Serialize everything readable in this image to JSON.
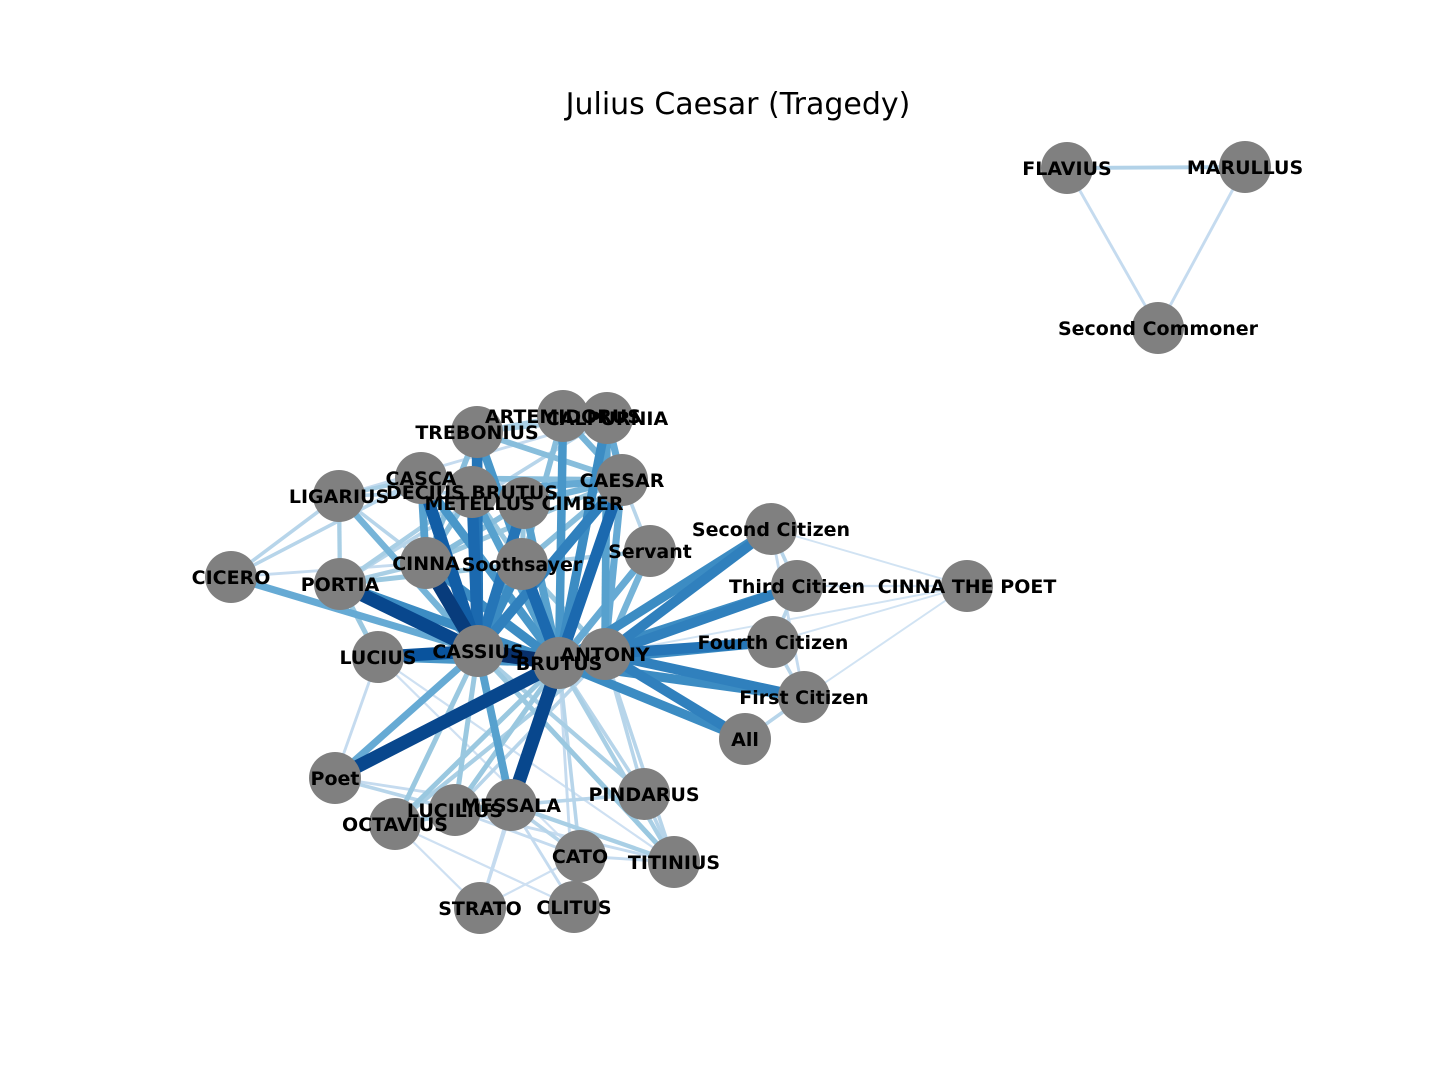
{
  "title": "Julius Caesar (Tragedy)",
  "node_color": "#808080",
  "edge_colormap": "Blues",
  "nodes": [
    {
      "id": "FLAVIUS",
      "label": "FLAVIUS"
    },
    {
      "id": "MARULLUS",
      "label": "MARULLUS"
    },
    {
      "id": "SECOND_COMMONER",
      "label": "Second Commoner"
    },
    {
      "id": "ARTEMIDORUS",
      "label": "ARTEMIDORUS"
    },
    {
      "id": "CALPURNIA",
      "label": "CALPURNIA"
    },
    {
      "id": "TREBONIUS",
      "label": "TREBONIUS"
    },
    {
      "id": "CASCA",
      "label": "CASCA"
    },
    {
      "id": "DECIUS_BRUTUS",
      "label": "DECIUS BRUTUS"
    },
    {
      "id": "METELLUS_CIMBER",
      "label": "METELLUS CIMBER"
    },
    {
      "id": "CAESAR",
      "label": "CAESAR"
    },
    {
      "id": "LIGARIUS",
      "label": "LIGARIUS"
    },
    {
      "id": "CINNA",
      "label": "CINNA"
    },
    {
      "id": "SOOTHSAYER",
      "label": "Soothsayer"
    },
    {
      "id": "SERVANT",
      "label": "Servant"
    },
    {
      "id": "SECOND_CITIZEN",
      "label": "Second Citizen"
    },
    {
      "id": "CICERO",
      "label": "CICERO"
    },
    {
      "id": "PORTIA",
      "label": "PORTIA"
    },
    {
      "id": "THIRD_CITIZEN",
      "label": "Third Citizen"
    },
    {
      "id": "CINNA_THE_POET",
      "label": "CINNA THE POET"
    },
    {
      "id": "LUCIUS",
      "label": "LUCIUS"
    },
    {
      "id": "CASSIUS",
      "label": "CASSIUS"
    },
    {
      "id": "BRUTUS",
      "label": "BRUTUS"
    },
    {
      "id": "ANTONY",
      "label": "ANTONY"
    },
    {
      "id": "FOURTH_CITIZEN",
      "label": "Fourth Citizen"
    },
    {
      "id": "FIRST_CITIZEN",
      "label": "First Citizen"
    },
    {
      "id": "ALL",
      "label": "All"
    },
    {
      "id": "POET",
      "label": "Poet"
    },
    {
      "id": "PINDARUS",
      "label": "PINDARUS"
    },
    {
      "id": "LUCILIUS",
      "label": "LUCILIUS"
    },
    {
      "id": "MESSALA",
      "label": "MESSALA"
    },
    {
      "id": "OCTAVIUS",
      "label": "OCTAVIUS"
    },
    {
      "id": "CATO",
      "label": "CATO"
    },
    {
      "id": "TITINIUS",
      "label": "TITINIUS"
    },
    {
      "id": "STRATO",
      "label": "STRATO"
    },
    {
      "id": "CLITUS",
      "label": "CLITUS"
    }
  ],
  "edges": [
    [
      "FLAVIUS",
      "MARULLUS",
      0.22
    ],
    [
      "FLAVIUS",
      "SECOND_COMMONER",
      0.15
    ],
    [
      "MARULLUS",
      "SECOND_COMMONER",
      0.15
    ],
    [
      "CASSIUS",
      "BRUTUS",
      1.0
    ],
    [
      "CASSIUS",
      "CINNA",
      0.95
    ],
    [
      "CASSIUS",
      "PORTIA",
      0.9
    ],
    [
      "CASSIUS",
      "LUCIUS",
      0.85
    ],
    [
      "CASSIUS",
      "CASCA",
      0.8
    ],
    [
      "CASSIUS",
      "DECIUS_BRUTUS",
      0.75
    ],
    [
      "CASSIUS",
      "METELLUS_CIMBER",
      0.7
    ],
    [
      "CASSIUS",
      "TREBONIUS",
      0.7
    ],
    [
      "CASSIUS",
      "CAESAR",
      0.65
    ],
    [
      "CASSIUS",
      "SOOTHSAYER",
      0.6
    ],
    [
      "CASSIUS",
      "LIGARIUS",
      0.4
    ],
    [
      "CASSIUS",
      "CICERO",
      0.45
    ],
    [
      "CASSIUS",
      "MESSALA",
      0.5
    ],
    [
      "CASSIUS",
      "POET",
      0.45
    ],
    [
      "CASSIUS",
      "OCTAVIUS",
      0.3
    ],
    [
      "CASSIUS",
      "LUCILIUS",
      0.3
    ],
    [
      "CASSIUS",
      "PINDARUS",
      0.25
    ],
    [
      "CASSIUS",
      "TITINIUS",
      0.3
    ],
    [
      "CASSIUS",
      "ANTONY",
      0.55
    ],
    [
      "BRUTUS",
      "ANTONY",
      0.8
    ],
    [
      "BRUTUS",
      "POET",
      0.9
    ],
    [
      "BRUTUS",
      "MESSALA",
      0.9
    ],
    [
      "BRUTUS",
      "SOOTHSAYER",
      0.75
    ],
    [
      "BRUTUS",
      "CAESAR",
      0.75
    ],
    [
      "BRUTUS",
      "CALPURNIA",
      0.6
    ],
    [
      "BRUTUS",
      "ARTEMIDORUS",
      0.55
    ],
    [
      "BRUTUS",
      "SERVANT",
      0.45
    ],
    [
      "BRUTUS",
      "PORTIA",
      0.6
    ],
    [
      "BRUTUS",
      "LUCIUS",
      0.55
    ],
    [
      "BRUTUS",
      "CINNA",
      0.6
    ],
    [
      "BRUTUS",
      "CASCA",
      0.55
    ],
    [
      "BRUTUS",
      "DECIUS_BRUTUS",
      0.5
    ],
    [
      "BRUTUS",
      "METELLUS_CIMBER",
      0.5
    ],
    [
      "BRUTUS",
      "TREBONIUS",
      0.55
    ],
    [
      "BRUTUS",
      "SECOND_CITIZEN",
      0.6
    ],
    [
      "BRUTUS",
      "THIRD_CITIZEN",
      0.6
    ],
    [
      "BRUTUS",
      "FOURTH_CITIZEN",
      0.6
    ],
    [
      "BRUTUS",
      "FIRST_CITIZEN",
      0.6
    ],
    [
      "BRUTUS",
      "ALL",
      0.6
    ],
    [
      "BRUTUS",
      "LUCILIUS",
      0.3
    ],
    [
      "BRUTUS",
      "OCTAVIUS",
      0.3
    ],
    [
      "BRUTUS",
      "CATO",
      0.2
    ],
    [
      "BRUTUS",
      "TITINIUS",
      0.25
    ],
    [
      "BRUTUS",
      "STRATO",
      0.15
    ],
    [
      "BRUTUS",
      "CLITUS",
      0.15
    ],
    [
      "BRUTUS",
      "PINDARUS",
      0.2
    ],
    [
      "ANTONY",
      "SECOND_CITIZEN",
      0.65
    ],
    [
      "ANTONY",
      "THIRD_CITIZEN",
      0.65
    ],
    [
      "ANTONY",
      "FOURTH_CITIZEN",
      0.7
    ],
    [
      "ANTONY",
      "FIRST_CITIZEN",
      0.65
    ],
    [
      "ANTONY",
      "ALL",
      0.65
    ],
    [
      "ANTONY",
      "SERVANT",
      0.4
    ],
    [
      "ANTONY",
      "CAESAR",
      0.45
    ],
    [
      "ANTONY",
      "CALPURNIA",
      0.5
    ],
    [
      "ANTONY",
      "TITINIUS",
      0.2
    ],
    [
      "ANTONY",
      "PINDARUS",
      0.2
    ],
    [
      "ANTONY",
      "OCTAVIUS",
      0.25
    ],
    [
      "ANTONY",
      "LUCILIUS",
      0.2
    ],
    [
      "ANTONY",
      "SOOTHSAYER",
      0.3
    ],
    [
      "ANTONY",
      "CINNA_THE_POET",
      0.08
    ],
    [
      "SECOND_CITIZEN",
      "CINNA_THE_POET",
      0.08
    ],
    [
      "THIRD_CITIZEN",
      "CINNA_THE_POET",
      0.1
    ],
    [
      "FOURTH_CITIZEN",
      "CINNA_THE_POET",
      0.08
    ],
    [
      "FIRST_CITIZEN",
      "CINNA_THE_POET",
      0.08
    ],
    [
      "SECOND_CITIZEN",
      "THIRD_CITIZEN",
      0.2
    ],
    [
      "THIRD_CITIZEN",
      "FOURTH_CITIZEN",
      0.2
    ],
    [
      "FOURTH_CITIZEN",
      "FIRST_CITIZEN",
      0.2
    ],
    [
      "SECOND_CITIZEN",
      "FIRST_CITIZEN",
      0.15
    ],
    [
      "ALL",
      "FIRST_CITIZEN",
      0.2
    ],
    [
      "CAESAR",
      "CALPURNIA",
      0.45
    ],
    [
      "CAESAR",
      "ARTEMIDORUS",
      0.4
    ],
    [
      "CAESAR",
      "TREBONIUS",
      0.35
    ],
    [
      "CAESAR",
      "CASCA",
      0.35
    ],
    [
      "CAESAR",
      "DECIUS_BRUTUS",
      0.45
    ],
    [
      "CAESAR",
      "METELLUS_CIMBER",
      0.4
    ],
    [
      "CAESAR",
      "SOOTHSAYER",
      0.35
    ],
    [
      "CAESAR",
      "CINNA",
      0.3
    ],
    [
      "CAESAR",
      "SERVANT",
      0.2
    ],
    [
      "CASCA",
      "CICERO",
      0.2
    ],
    [
      "CASCA",
      "CINNA",
      0.5
    ],
    [
      "CASCA",
      "LIGARIUS",
      0.25
    ],
    [
      "DECIUS_BRUTUS",
      "CINNA",
      0.35
    ],
    [
      "METELLUS_CIMBER",
      "CINNA",
      0.35
    ],
    [
      "TREBONIUS",
      "CINNA",
      0.35
    ],
    [
      "LIGARIUS",
      "CICERO",
      0.2
    ],
    [
      "LIGARIUS",
      "PORTIA",
      0.25
    ],
    [
      "LIGARIUS",
      "CINNA",
      0.2
    ],
    [
      "LIGARIUS",
      "DECIUS_BRUTUS",
      0.2
    ],
    [
      "LIGARIUS",
      "CALPURNIA",
      0.15
    ],
    [
      "PORTIA",
      "LUCIUS",
      0.3
    ],
    [
      "PORTIA",
      "CINNA",
      0.25
    ],
    [
      "PORTIA",
      "SOOTHSAYER",
      0.3
    ],
    [
      "PORTIA",
      "DECIUS_BRUTUS",
      0.25
    ],
    [
      "PORTIA",
      "CALPURNIA",
      0.2
    ],
    [
      "CICERO",
      "CINNA",
      0.15
    ],
    [
      "CALPURNIA",
      "ARTEMIDORUS",
      0.3
    ],
    [
      "TREBONIUS",
      "CALPURNIA",
      0.25
    ],
    [
      "TREBONIUS",
      "ARTEMIDORUS",
      0.25
    ],
    [
      "TREBONIUS",
      "DECIUS_BRUTUS",
      0.25
    ],
    [
      "SOOTHSAYER",
      "METELLUS_CIMBER",
      0.3
    ],
    [
      "SOOTHSAYER",
      "DECIUS_BRUTUS",
      0.3
    ],
    [
      "SOOTHSAYER",
      "ARTEMIDORUS",
      0.35
    ],
    [
      "SOOTHSAYER",
      "SERVANT",
      0.25
    ],
    [
      "MESSALA",
      "LUCILIUS",
      0.3
    ],
    [
      "MESSALA",
      "OCTAVIUS",
      0.25
    ],
    [
      "MESSALA",
      "TITINIUS",
      0.25
    ],
    [
      "MESSALA",
      "CATO",
      0.2
    ],
    [
      "MESSALA",
      "STRATO",
      0.15
    ],
    [
      "MESSALA",
      "CLITUS",
      0.15
    ],
    [
      "MESSALA",
      "PINDARUS",
      0.2
    ],
    [
      "LUCILIUS",
      "OCTAVIUS",
      0.2
    ],
    [
      "LUCILIUS",
      "CATO",
      0.15
    ],
    [
      "LUCILIUS",
      "TITINIUS",
      0.15
    ],
    [
      "OCTAVIUS",
      "CLITUS",
      0.1
    ],
    [
      "OCTAVIUS",
      "STRATO",
      0.1
    ],
    [
      "CATO",
      "TITINIUS",
      0.15
    ],
    [
      "CATO",
      "STRATO",
      0.1
    ],
    [
      "PINDARUS",
      "TITINIUS",
      0.2
    ],
    [
      "POET",
      "LUCILIUS",
      0.2
    ],
    [
      "POET",
      "MESSALA",
      0.15
    ],
    [
      "LUCIUS",
      "POET",
      0.15
    ],
    [
      "LUCIUS",
      "TITINIUS",
      0.1
    ],
    [
      "LUCIUS",
      "CATO",
      0.1
    ]
  ]
}
